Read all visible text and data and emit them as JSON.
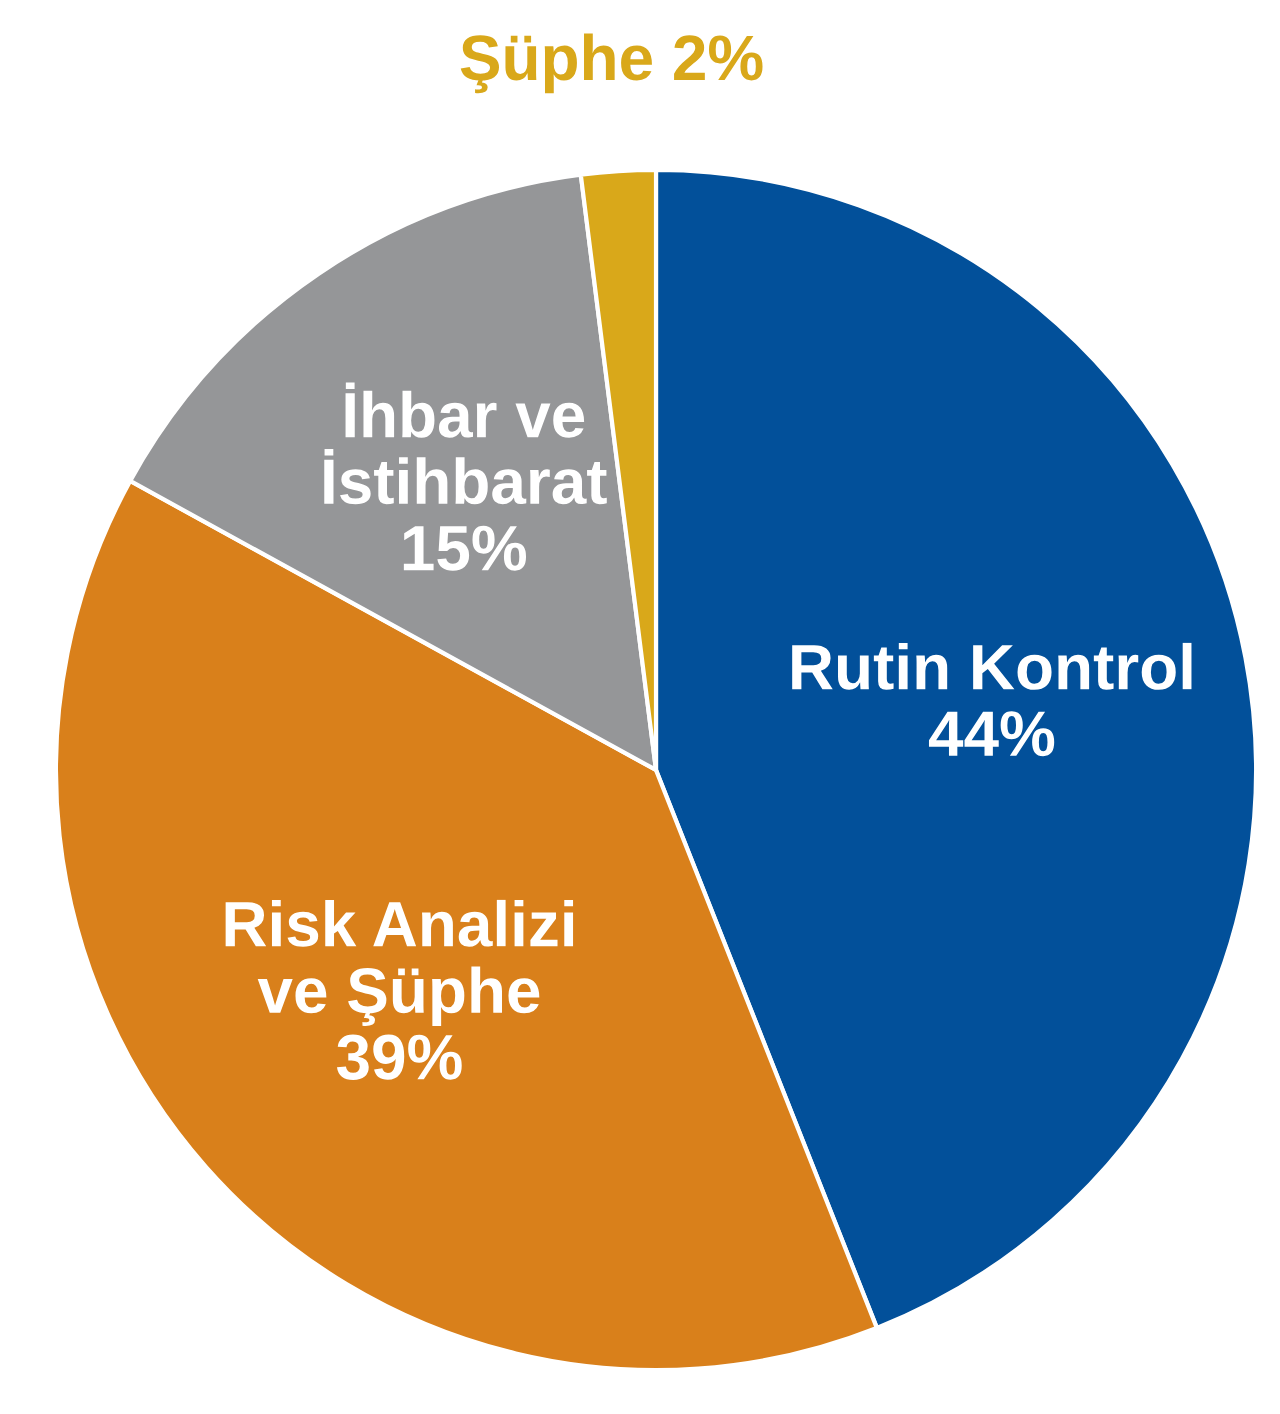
{
  "chart_data": {
    "type": "pie",
    "categories": [
      "Rutin Kontrol",
      "Risk Analizi ve Şüphe",
      "İhbar ve İstihbarat",
      "Şüphe"
    ],
    "values": [
      44,
      39,
      15,
      2
    ],
    "value_labels": [
      "44%",
      "39%",
      "15%",
      "2%"
    ],
    "colors": [
      "#02509a",
      "#d9801b",
      "#959698",
      "#d9a81a"
    ]
  }
}
